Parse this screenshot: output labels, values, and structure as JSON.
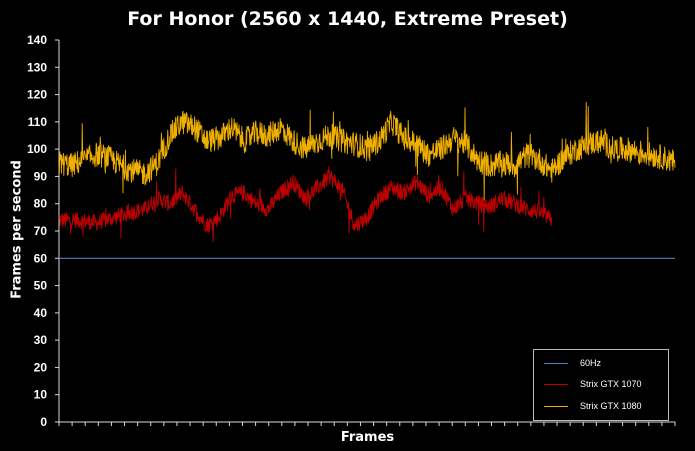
{
  "chart_data": {
    "type": "line",
    "title": "For Honor (2560 x 1440,  Extreme Preset)",
    "xlabel": "Frames",
    "ylabel": "Frames per second",
    "ylim": [
      0,
      140
    ],
    "yticks": [
      "0",
      "10",
      "20",
      "30",
      "40",
      "50",
      "60",
      "70",
      "80",
      "90",
      "100",
      "110",
      "120",
      "130",
      "140"
    ],
    "x_tick_count": 47,
    "grid": false,
    "legend_position": "bottom-right",
    "xlim": [
      0,
      100
    ],
    "series": [
      {
        "name": "60Hz",
        "color": "#4f81bd",
        "x": [
          0,
          100
        ],
        "values": [
          60,
          60
        ]
      },
      {
        "name": "Strix GTX 1070",
        "color": "#c00000",
        "x": [
          0,
          3,
          6,
          9,
          12,
          14,
          16,
          18,
          20,
          22,
          24,
          26,
          28,
          30,
          32,
          34,
          36,
          38,
          40,
          42,
          44,
          46,
          48,
          50,
          52,
          54,
          56,
          58,
          60,
          62,
          64,
          66,
          68,
          70,
          72,
          74,
          76,
          78,
          80
        ],
        "values": [
          74,
          74,
          73,
          75,
          77,
          78,
          82,
          80,
          84,
          78,
          72,
          75,
          83,
          84,
          80,
          78,
          84,
          88,
          82,
          86,
          90,
          85,
          72,
          75,
          82,
          86,
          84,
          88,
          83,
          86,
          78,
          82,
          80,
          79,
          82,
          80,
          78,
          77,
          74
        ]
      },
      {
        "name": "Strix GTX 1080",
        "color": "#f0b000",
        "x": [
          0,
          2,
          4,
          6,
          8,
          10,
          12,
          14,
          16,
          18,
          20,
          22,
          24,
          26,
          28,
          30,
          32,
          34,
          36,
          38,
          40,
          42,
          44,
          46,
          48,
          50,
          52,
          54,
          56,
          58,
          60,
          62,
          64,
          66,
          68,
          70,
          72,
          74,
          76,
          78,
          80,
          82,
          84,
          86,
          88,
          90,
          92,
          94,
          96,
          98,
          100
        ],
        "values": [
          95,
          94,
          96,
          98,
          97,
          94,
          92,
          91,
          95,
          105,
          110,
          108,
          103,
          104,
          108,
          103,
          106,
          105,
          108,
          103,
          100,
          103,
          105,
          103,
          102,
          100,
          103,
          110,
          104,
          102,
          98,
          100,
          104,
          102,
          96,
          94,
          95,
          94,
          98,
          96,
          92,
          97,
          100,
          102,
          103,
          100,
          100,
          99,
          98,
          97,
          95
        ]
      }
    ]
  }
}
